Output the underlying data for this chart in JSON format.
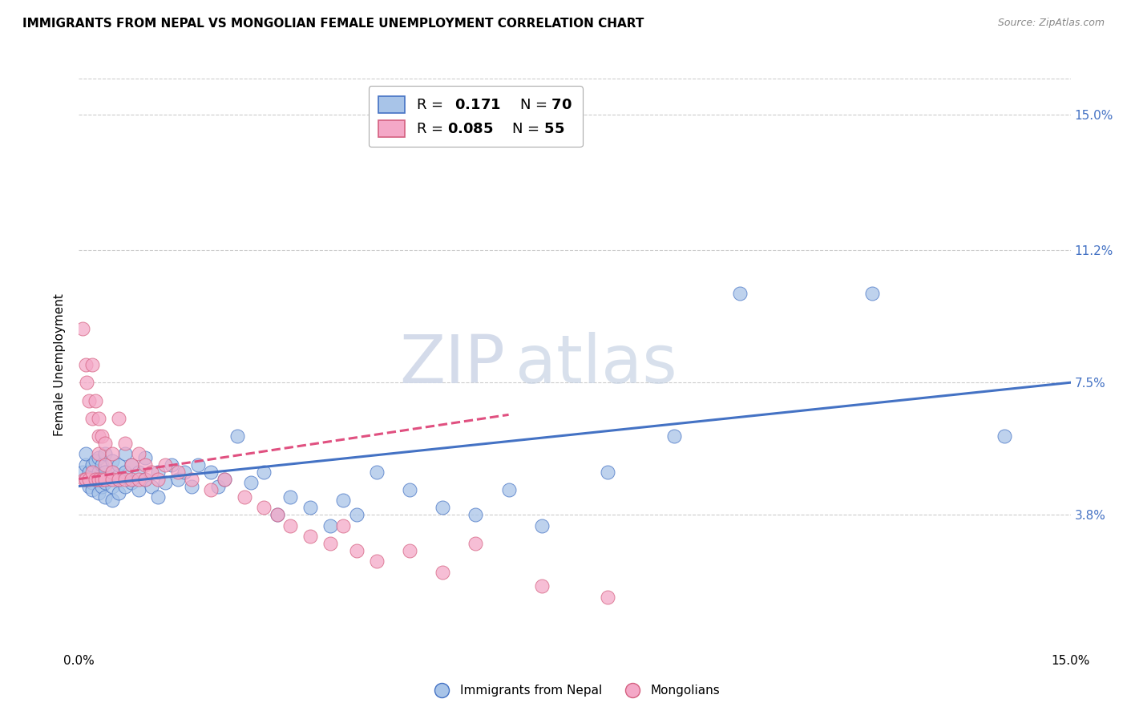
{
  "title": "IMMIGRANTS FROM NEPAL VS MONGOLIAN FEMALE UNEMPLOYMENT CORRELATION CHART",
  "source": "Source: ZipAtlas.com",
  "ylabel": "Female Unemployment",
  "ytick_labels": [
    "15.0%",
    "11.2%",
    "7.5%",
    "3.8%"
  ],
  "ytick_values": [
    0.15,
    0.112,
    0.075,
    0.038
  ],
  "xmin": 0.0,
  "xmax": 0.15,
  "ymin": 0.0,
  "ymax": 0.16,
  "color_blue": "#a8c4e8",
  "color_pink": "#f4a8c7",
  "color_blue_line": "#4472c4",
  "color_pink_line": "#e05080",
  "watermark_zip": "ZIP",
  "watermark_atlas": "atlas",
  "nepal_line_x": [
    0.0,
    0.15
  ],
  "nepal_line_y": [
    0.046,
    0.075
  ],
  "mongol_line_x": [
    0.0,
    0.065
  ],
  "mongol_line_y": [
    0.048,
    0.066
  ],
  "nepal_x": [
    0.0005,
    0.001,
    0.001,
    0.001,
    0.0015,
    0.0015,
    0.002,
    0.002,
    0.002,
    0.0025,
    0.0025,
    0.003,
    0.003,
    0.003,
    0.003,
    0.0035,
    0.0035,
    0.004,
    0.004,
    0.004,
    0.004,
    0.0045,
    0.005,
    0.005,
    0.005,
    0.005,
    0.006,
    0.006,
    0.006,
    0.007,
    0.007,
    0.007,
    0.008,
    0.008,
    0.009,
    0.009,
    0.01,
    0.01,
    0.011,
    0.012,
    0.012,
    0.013,
    0.014,
    0.015,
    0.016,
    0.017,
    0.018,
    0.02,
    0.021,
    0.022,
    0.024,
    0.026,
    0.028,
    0.03,
    0.032,
    0.035,
    0.038,
    0.04,
    0.042,
    0.045,
    0.05,
    0.055,
    0.06,
    0.065,
    0.07,
    0.08,
    0.09,
    0.1,
    0.12,
    0.14
  ],
  "nepal_y": [
    0.05,
    0.052,
    0.048,
    0.055,
    0.046,
    0.05,
    0.047,
    0.052,
    0.045,
    0.048,
    0.053,
    0.044,
    0.048,
    0.05,
    0.054,
    0.046,
    0.052,
    0.043,
    0.047,
    0.05,
    0.055,
    0.048,
    0.042,
    0.046,
    0.05,
    0.053,
    0.044,
    0.049,
    0.052,
    0.046,
    0.05,
    0.055,
    0.047,
    0.052,
    0.045,
    0.05,
    0.048,
    0.054,
    0.046,
    0.043,
    0.05,
    0.047,
    0.052,
    0.048,
    0.05,
    0.046,
    0.052,
    0.05,
    0.046,
    0.048,
    0.06,
    0.047,
    0.05,
    0.038,
    0.043,
    0.04,
    0.035,
    0.042,
    0.038,
    0.05,
    0.045,
    0.04,
    0.038,
    0.045,
    0.035,
    0.05,
    0.06,
    0.1,
    0.1,
    0.06
  ],
  "mongol_x": [
    0.0005,
    0.0008,
    0.001,
    0.001,
    0.0012,
    0.0015,
    0.0015,
    0.002,
    0.002,
    0.002,
    0.0025,
    0.0025,
    0.003,
    0.003,
    0.003,
    0.003,
    0.0035,
    0.0035,
    0.004,
    0.004,
    0.004,
    0.005,
    0.005,
    0.005,
    0.006,
    0.006,
    0.007,
    0.007,
    0.008,
    0.008,
    0.009,
    0.009,
    0.01,
    0.01,
    0.011,
    0.012,
    0.013,
    0.015,
    0.017,
    0.02,
    0.022,
    0.025,
    0.028,
    0.03,
    0.032,
    0.035,
    0.038,
    0.04,
    0.042,
    0.045,
    0.05,
    0.055,
    0.06,
    0.07,
    0.08
  ],
  "mongol_y": [
    0.09,
    0.048,
    0.08,
    0.048,
    0.075,
    0.07,
    0.048,
    0.08,
    0.065,
    0.05,
    0.07,
    0.048,
    0.065,
    0.06,
    0.048,
    0.055,
    0.06,
    0.048,
    0.058,
    0.052,
    0.048,
    0.055,
    0.05,
    0.048,
    0.065,
    0.048,
    0.058,
    0.048,
    0.052,
    0.048,
    0.055,
    0.048,
    0.052,
    0.048,
    0.05,
    0.048,
    0.052,
    0.05,
    0.048,
    0.045,
    0.048,
    0.043,
    0.04,
    0.038,
    0.035,
    0.032,
    0.03,
    0.035,
    0.028,
    0.025,
    0.028,
    0.022,
    0.03,
    0.018,
    0.015
  ]
}
